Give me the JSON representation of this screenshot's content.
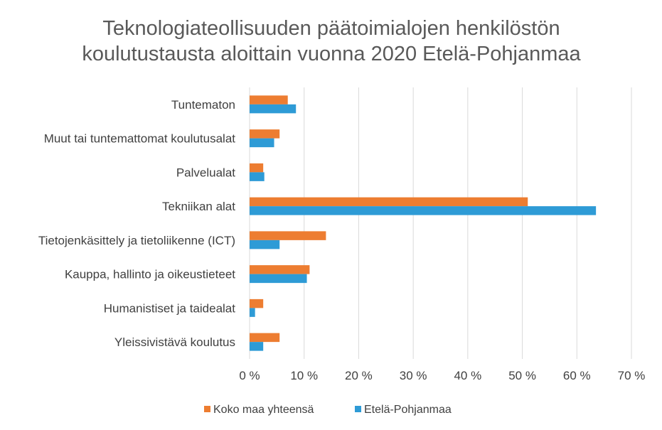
{
  "chart_data": {
    "type": "bar",
    "orientation": "horizontal",
    "title_lines": [
      "Teknologiateollisuuden päätoimialojen henkilöstön",
      "koulutustausta aloittain vuonna 2020 Etelä-Pohjanmaa"
    ],
    "categories": [
      "Tuntematon",
      "Muut tai tuntemattomat koulutusalat",
      "Palvelualat",
      "Tekniikan alat",
      "Tietojenkäsittely ja tietoliikenne (ICT)",
      "Kauppa, hallinto ja oikeustieteet",
      "Humanistiset ja taidealat",
      "Yleissivistävä koulutus"
    ],
    "series": [
      {
        "name": "Koko maa yhteensä",
        "color": "#ED7D31",
        "values": [
          7.0,
          5.5,
          2.5,
          51.0,
          14.0,
          11.0,
          2.5,
          5.5
        ]
      },
      {
        "name": "Etelä-Pohjanmaa",
        "color": "#2E9BD6",
        "values": [
          8.5,
          4.5,
          2.7,
          63.5,
          5.5,
          10.5,
          1.0,
          2.5
        ]
      }
    ],
    "xlim": [
      0,
      70
    ],
    "x_ticks": [
      0,
      10,
      20,
      30,
      40,
      50,
      60,
      70
    ],
    "x_tick_labels": [
      "0 %",
      "10 %",
      "20 %",
      "30 %",
      "40 %",
      "50 %",
      "60 %",
      "70 %"
    ],
    "grid": true,
    "legend_position": "bottom"
  }
}
